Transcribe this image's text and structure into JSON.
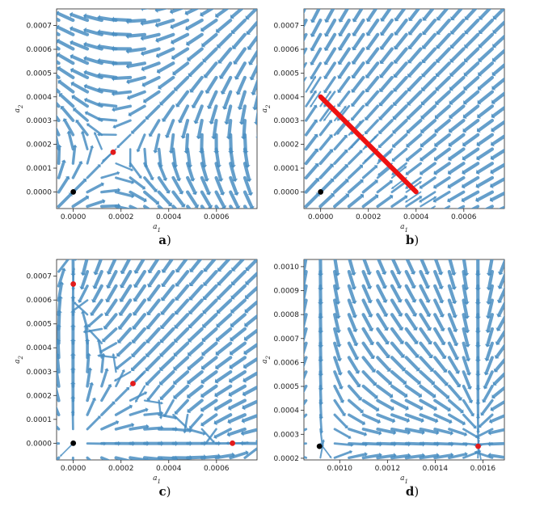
{
  "colors": {
    "arrow": "#4a8ec2",
    "equilibrium_stable": "#000000",
    "equilibrium_other": "#e31b1b",
    "line_of_equilibria": "#ee1111"
  },
  "chart_data": [
    {
      "type": "quiver",
      "panel": "a",
      "caption": "a)",
      "xlabel": "a_1",
      "ylabel": "a_2",
      "xlim": [
        -7e-05,
        0.00077
      ],
      "ylim": [
        -7e-05,
        0.00077
      ],
      "xticks": [
        0.0,
        0.0002,
        0.0004,
        0.0006
      ],
      "xtick_labels": [
        "0.0000",
        "0.0002",
        "0.0004",
        "0.0006"
      ],
      "yticks": [
        0.0,
        0.0001,
        0.0002,
        0.0003,
        0.0004,
        0.0005,
        0.0006,
        0.0007
      ],
      "ytick_labels": [
        "0.0000",
        "0.0001",
        "0.0002",
        "0.0003",
        "0.0004",
        "0.0005",
        "0.0006",
        "0.0007"
      ],
      "points": [
        {
          "x": 0.0,
          "y": 0.0,
          "color": "#000000"
        },
        {
          "x": 0.000167,
          "y": 0.000167,
          "color": "#e31b1b"
        }
      ],
      "lines": [],
      "field": {
        "kind": "a"
      }
    },
    {
      "type": "quiver",
      "panel": "b",
      "caption": "b)",
      "xlabel": "a_1",
      "ylabel": "a_2",
      "xlim": [
        -7e-05,
        0.00077
      ],
      "ylim": [
        -7e-05,
        0.00077
      ],
      "xticks": [
        0.0,
        0.0002,
        0.0004,
        0.0006
      ],
      "xtick_labels": [
        "0.0000",
        "0.0002",
        "0.0004",
        "0.0006"
      ],
      "yticks": [
        0.0,
        0.0001,
        0.0002,
        0.0003,
        0.0004,
        0.0005,
        0.0006,
        0.0007
      ],
      "ytick_labels": [
        "0.0000",
        "0.0001",
        "0.0002",
        "0.0003",
        "0.0004",
        "0.0005",
        "0.0006",
        "0.0007"
      ],
      "points": [
        {
          "x": 0.0,
          "y": 0.0,
          "color": "#000000"
        }
      ],
      "lines": [
        {
          "x": [
            0.0,
            0.0004
          ],
          "y": [
            0.0004,
            0.0
          ],
          "color": "#ee1111"
        }
      ],
      "field": {
        "kind": "b"
      }
    },
    {
      "type": "quiver",
      "panel": "c",
      "caption": "c)",
      "xlabel": "a_1",
      "ylabel": "a_2",
      "xlim": [
        -7e-05,
        0.00077
      ],
      "ylim": [
        -7e-05,
        0.00077
      ],
      "xticks": [
        0.0,
        0.0002,
        0.0004,
        0.0006
      ],
      "xtick_labels": [
        "0.0000",
        "0.0002",
        "0.0004",
        "0.0006"
      ],
      "yticks": [
        0.0,
        0.0001,
        0.0002,
        0.0003,
        0.0004,
        0.0005,
        0.0006,
        0.0007
      ],
      "ytick_labels": [
        "0.0000",
        "0.0001",
        "0.0002",
        "0.0003",
        "0.0004",
        "0.0005",
        "0.0006",
        "0.0007"
      ],
      "points": [
        {
          "x": 0.0,
          "y": 0.0,
          "color": "#000000"
        },
        {
          "x": 0.0,
          "y": 0.000667,
          "color": "#e31b1b"
        },
        {
          "x": 0.000667,
          "y": 0.0,
          "color": "#e31b1b"
        },
        {
          "x": 0.00025,
          "y": 0.00025,
          "color": "#e31b1b"
        }
      ],
      "lines": [],
      "field": {
        "kind": "c"
      }
    },
    {
      "type": "quiver",
      "panel": "d",
      "caption": "d)",
      "xlabel": "a_1",
      "ylabel": "a_2",
      "xlim": [
        0.00085,
        0.00169
      ],
      "ylim": [
        0.000193,
        0.00103
      ],
      "xticks": [
        0.001,
        0.0012,
        0.0014,
        0.0016
      ],
      "xtick_labels": [
        "0.0010",
        "0.0012",
        "0.0014",
        "0.0016"
      ],
      "yticks": [
        0.0002,
        0.0003,
        0.0004,
        0.0005,
        0.0006,
        0.0007,
        0.0008,
        0.0009,
        0.001
      ],
      "ytick_labels": [
        "0.0002",
        "0.0003",
        "0.0004",
        "0.0005",
        "0.0006",
        "0.0007",
        "0.0008",
        "0.0009",
        "0.0010"
      ],
      "points": [
        {
          "x": 0.000915,
          "y": 0.00025,
          "color": "#000000"
        },
        {
          "x": 0.00158,
          "y": 0.00025,
          "color": "#e31b1b"
        }
      ],
      "lines": [],
      "field": {
        "kind": "d"
      }
    }
  ]
}
